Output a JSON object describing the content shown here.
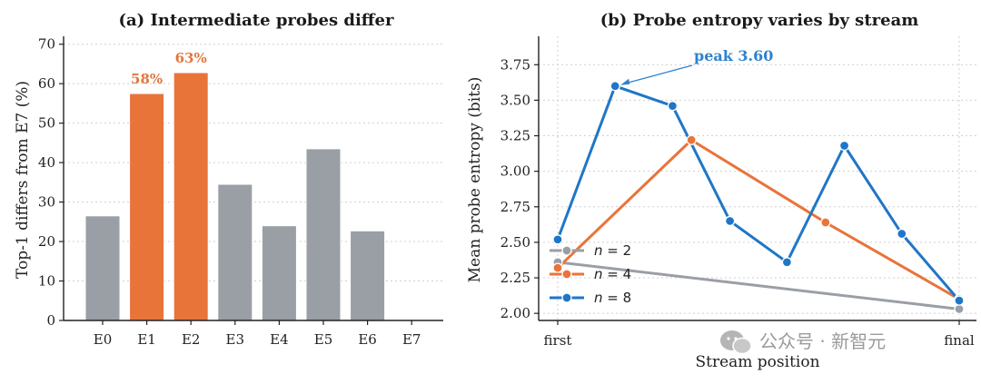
{
  "colors": {
    "gray": "#9a9fa5",
    "orange": "#e8743a",
    "blue": "#1f76c7",
    "highlight_label": "#e0773f",
    "annotation": "#2e82cf"
  },
  "chart_data": [
    {
      "type": "bar",
      "title": "(a) Intermediate probes differ",
      "xlabel": "",
      "ylabel": "Top-1 differs from E7 (%)",
      "ylim": [
        0,
        72
      ],
      "yticks": [
        "0",
        "10",
        "20",
        "30",
        "40",
        "50",
        "60",
        "70"
      ],
      "grid": true,
      "categories": [
        "E0",
        "E1",
        "E2",
        "E3",
        "E4",
        "E5",
        "E6",
        "E7"
      ],
      "values": [
        26.5,
        57.5,
        62.8,
        34.5,
        24,
        43.5,
        22.7,
        0
      ],
      "highlighted": [
        false,
        true,
        true,
        false,
        false,
        false,
        false,
        false
      ],
      "data_labels": [
        "",
        "58%",
        "63%",
        "",
        "",
        "",
        "",
        ""
      ]
    },
    {
      "type": "line",
      "title": "(b) Probe entropy varies by stream",
      "xlabel": "Stream position",
      "ylabel": "Mean probe entropy (bits)",
      "ylim": [
        1.95,
        3.95
      ],
      "yticks": [
        "2.00",
        "2.25",
        "2.50",
        "2.75",
        "3.00",
        "3.25",
        "3.50",
        "3.75"
      ],
      "xlim": [
        0,
        1
      ],
      "xticks": [
        {
          "x": 0,
          "label": "first"
        },
        {
          "x": 1,
          "label": "final"
        }
      ],
      "grid": true,
      "legend_position": "lower-left",
      "series": [
        {
          "name": "n = 2",
          "color_key": "gray",
          "x": [
            0,
            1
          ],
          "y": [
            2.36,
            2.03
          ]
        },
        {
          "name": "n = 4",
          "color_key": "orange",
          "x": [
            0,
            0.333,
            0.667,
            1
          ],
          "y": [
            2.32,
            3.22,
            2.64,
            2.1
          ]
        },
        {
          "name": "n = 8",
          "color_key": "blue",
          "x": [
            0,
            0.143,
            0.286,
            0.429,
            0.571,
            0.714,
            0.857,
            1
          ],
          "y": [
            2.52,
            3.6,
            3.46,
            2.65,
            2.36,
            3.18,
            2.56,
            2.09
          ]
        }
      ],
      "annotation": {
        "text": "peak 3.60",
        "x": 0.143,
        "y": 3.6
      }
    }
  ],
  "watermark": {
    "text": "公众号 · 新智元"
  }
}
